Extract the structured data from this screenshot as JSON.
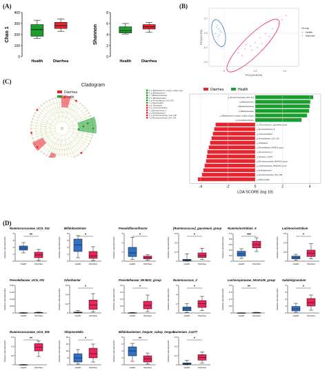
{
  "figure": {
    "panel_letters": [
      "(A)",
      "(B)",
      "(C)",
      "(D)"
    ],
    "colors": {
      "health": "#1a9e2e",
      "diarrhea": "#e8232e",
      "blue": "#2f72c8",
      "pink": "#e8245a"
    }
  },
  "panel_a": {
    "charts": [
      {
        "type": "box",
        "ylabel": "Chao 1",
        "ylim": [
          0,
          400
        ],
        "yticks": [
          "0",
          "100",
          "200",
          "300",
          "400"
        ],
        "categories": [
          "Health",
          "Diarrhea"
        ],
        "boxes": [
          {
            "name": "Health",
            "color": "#1a9e2e",
            "min": 165,
            "q1": 185,
            "median": 245,
            "q3": 290,
            "max": 330
          },
          {
            "name": "Diarrhea",
            "color": "#e8232e",
            "min": 230,
            "q1": 255,
            "median": 280,
            "q3": 310,
            "max": 340
          }
        ]
      },
      {
        "type": "box",
        "ylabel": "Shannon",
        "ylim": [
          0,
          8
        ],
        "yticks": [
          "0",
          "2",
          "4",
          "6",
          "8"
        ],
        "categories": [
          "Health",
          "Diarrhea"
        ],
        "boxes": [
          {
            "name": "Health",
            "color": "#1a9e2e",
            "min": 4.1,
            "q1": 4.3,
            "median": 4.7,
            "q3": 5.4,
            "max": 6.0
          },
          {
            "name": "Diarrhea",
            "color": "#e8232e",
            "min": 4.4,
            "q1": 5.0,
            "median": 5.4,
            "q3": 5.8,
            "max": 6.2
          }
        ]
      }
    ]
  },
  "panel_b": {
    "legend_title": "Group",
    "legend": [
      "Health",
      "Diarrhea"
    ],
    "xlabel": "PC1(19.61%)",
    "ylabel": "PC2(13.3%)",
    "xticks": [
      "0",
      "0.1",
      "0.2"
    ],
    "yticks": [
      "0.1",
      "0.0",
      "-0.1",
      "-0.2"
    ]
  },
  "panel_c": {
    "cladogram_title": "Cladogram",
    "legend": [
      "Diarrhea",
      "Health"
    ],
    "taxa_list": [
      "a: g_Bifidobacterium_longum_subsp_longum",
      "b: g_Bifidobacterium",
      "c: f_Bifidobacteriaceae",
      "d: o_Bifidobacteriales",
      "e: g_Prevotellaceae_UCG_001",
      "f: g_Alloprevotella",
      "g: g_Odoribacter",
      "h: g_Lachnoclostridium",
      "i: g_Ruminococcus_2",
      "j: g_Subdoligranulum",
      "k: g_Ruminococcaceae_UCG_005",
      "l: g_Ruminococcaceae_UCG_014"
    ],
    "lda": {
      "type": "bar",
      "xlabel": "LDA SCORE (log 10)",
      "xticks": [
        "-4",
        "-2",
        "0",
        "2",
        "4"
      ],
      "xlim": [
        -4.8,
        4.8
      ],
      "legend": [
        "Diarrhea",
        "Health"
      ],
      "items": [
        {
          "label": "g_Ruminococcaceae_UCG_014",
          "value": 4.25
        },
        {
          "label": "g_Bifidobacterium",
          "value": 4.05
        },
        {
          "label": "f_Bifidobacteriaceae",
          "value": 4.0
        },
        {
          "label": "o_Bifidobacteriales",
          "value": 3.95
        },
        {
          "label": "g_Bifidobacterium_longum_subsp_longum",
          "value": 3.8
        },
        {
          "label": "g_Pseudoflavonifractor",
          "value": 3.4
        },
        {
          "label": "g__Ruminococcus__gauvreauii_group",
          "value": -2.9
        },
        {
          "label": "g_Ruminiclostridium_9",
          "value": -3.0
        },
        {
          "label": "g_Lachnoclostridium",
          "value": -3.1
        },
        {
          "label": "g_Prevotellaceae_UCG_001",
          "value": -3.2
        },
        {
          "label": "g_Odoribacter",
          "value": -3.3
        },
        {
          "label": "g_Prevotellaceae_NK3B31_group",
          "value": -3.4
        },
        {
          "label": "g_Ruminococcus_2",
          "value": -3.5
        },
        {
          "label": "g_bacterium_ic1277",
          "value": -3.55
        },
        {
          "label": "g_Ruminococcaceae_NK4A214_group",
          "value": -3.6
        },
        {
          "label": "g_Lachnospiraceae_NK4A136_group",
          "value": -3.7
        },
        {
          "label": "g_Subdoligranulum",
          "value": -3.8
        },
        {
          "label": "g_Ruminococcaceae_UCG_005",
          "value": -3.9
        },
        {
          "label": "g_Alloprevotella",
          "value": -4.2
        }
      ]
    }
  },
  "panel_d": {
    "ylabel": "Relative abundance(%)",
    "categories": [
      "Health",
      "Diarrhea"
    ],
    "plots": [
      {
        "title": "Ruminococcaceae_UCG_014",
        "sig": "**",
        "yticks": [
          "0",
          "1",
          "2",
          "3",
          "4"
        ],
        "ymax": 4,
        "health": {
          "min": 1.2,
          "q1": 1.6,
          "median": 1.9,
          "q3": 2.2,
          "max": 2.7
        },
        "diarrhea": {
          "min": 0.1,
          "q1": 0.5,
          "median": 0.9,
          "q3": 1.3,
          "max": 1.7
        }
      },
      {
        "title": "Bifidobacterium",
        "sig": "*",
        "yticks": [
          "0",
          "2",
          "4",
          "6",
          "8"
        ],
        "ymax": 8,
        "health": {
          "min": 1.0,
          "q1": 2.8,
          "median": 4.7,
          "q3": 6.4,
          "max": 7.4
        },
        "diarrhea": {
          "min": 0.2,
          "q1": 0.8,
          "median": 1.5,
          "q3": 2.8,
          "max": 4.2
        }
      },
      {
        "title": "Pseudoflavonifractor",
        "sig": "*",
        "yticks": [
          "0",
          "1",
          "2",
          "3"
        ],
        "ymax": 3,
        "health": {
          "min": 0.2,
          "q1": 0.5,
          "median": 0.9,
          "q3": 1.5,
          "max": 2.6
        },
        "diarrhea": {
          "min": 0.1,
          "q1": 0.25,
          "median": 0.4,
          "q3": 0.55,
          "max": 0.7
        }
      },
      {
        "title": "[Ruminococcus]_gauvreauii_group",
        "sig": "*",
        "yticks": [
          "0",
          "0.1",
          "0.2",
          "0.3"
        ],
        "ymax": 0.3,
        "health": {
          "min": 0.0,
          "q1": 0.005,
          "median": 0.012,
          "q3": 0.02,
          "max": 0.08
        },
        "diarrhea": {
          "min": 0.02,
          "q1": 0.04,
          "median": 0.06,
          "q3": 0.09,
          "max": 0.14
        }
      },
      {
        "title": "Ruminiclostridium_9",
        "sig": "***",
        "yticks": [
          "0",
          "0.2",
          "0.4",
          "0.6",
          "0.8",
          "1.0"
        ],
        "ymax": 1.0,
        "health": {
          "min": 0.1,
          "q1": 0.18,
          "median": 0.27,
          "q3": 0.36,
          "max": 0.45
        },
        "diarrhea": {
          "min": 0.35,
          "q1": 0.48,
          "median": 0.6,
          "q3": 0.72,
          "max": 0.85
        }
      },
      {
        "title": "Lachnoclostridium",
        "sig": "*",
        "yticks": [
          "0",
          "0.2",
          "0.4",
          "0.6"
        ],
        "ymax": 0.6,
        "health": {
          "min": 0.02,
          "q1": 0.05,
          "median": 0.08,
          "q3": 0.11,
          "max": 0.15
        },
        "diarrhea": {
          "min": 0.05,
          "q1": 0.1,
          "median": 0.17,
          "q3": 0.24,
          "max": 0.38
        }
      },
      {
        "title": "Prevotellaceae_UCG_001",
        "sig": "",
        "yticks": [
          "0",
          "0.05",
          "0.10",
          "0.15",
          "0.20"
        ],
        "ymax": 0.2,
        "health": {
          "min": 0.0,
          "q1": 0.0,
          "median": 0.0,
          "q3": 0.002,
          "max": 0.004
        },
        "diarrhea": {
          "min": 0.0,
          "q1": 0.0,
          "median": 0.002,
          "q3": 0.004,
          "max": 0.006
        }
      },
      {
        "title": "Odoribacter",
        "sig": "*",
        "yticks": [
          "0",
          "0.2",
          "0.4",
          "0.6"
        ],
        "ymax": 0.6,
        "health": {
          "min": 0.0,
          "q1": 0.005,
          "median": 0.01,
          "q3": 0.02,
          "max": 0.05
        },
        "diarrhea": {
          "min": 0.02,
          "q1": 0.08,
          "median": 0.17,
          "q3": 0.28,
          "max": 0.42
        }
      },
      {
        "title": "Prevotellaceae_NK3B31_group",
        "sig": "*",
        "yticks": [
          "0",
          "0.5",
          "1.0",
          "1.5",
          "2.0"
        ],
        "ymax": 2.0,
        "health": {
          "min": 0.0,
          "q1": 0.0,
          "median": 0.01,
          "q3": 0.02,
          "max": 0.04
        },
        "diarrhea": {
          "min": 0.1,
          "q1": 0.3,
          "median": 0.55,
          "q3": 0.85,
          "max": 1.3
        }
      },
      {
        "title": "Ruminococcus_2",
        "sig": "*",
        "yticks": [
          "0",
          "2",
          "4",
          "6"
        ],
        "ymax": 6,
        "health": {
          "min": 0.1,
          "q1": 0.5,
          "median": 0.9,
          "q3": 1.3,
          "max": 2.0
        },
        "diarrhea": {
          "min": 0.5,
          "q1": 1.2,
          "median": 2.0,
          "q3": 2.7,
          "max": 3.6
        }
      },
      {
        "title": "Lachnospiraceae_NK4A136_group",
        "sig": "**",
        "yticks": [
          "0",
          "0.5",
          "1.0",
          "1.5",
          "2.0"
        ],
        "ymax": 2.0,
        "health": {
          "min": 0.0,
          "q1": 0.0,
          "median": 0.005,
          "q3": 0.01,
          "max": 0.02
        },
        "diarrhea": {
          "min": 0.0,
          "q1": 0.01,
          "median": 0.02,
          "q3": 0.03,
          "max": 0.05
        }
      },
      {
        "title": "Subdoligranulum",
        "sig": "*",
        "yticks": [
          "0",
          "1",
          "2",
          "3",
          "4"
        ],
        "ymax": 4,
        "health": {
          "min": 0.1,
          "q1": 0.3,
          "median": 0.6,
          "q3": 0.95,
          "max": 1.4
        },
        "diarrhea": {
          "min": 0.4,
          "q1": 1.0,
          "median": 1.5,
          "q3": 2.1,
          "max": 2.6
        }
      },
      {
        "title": "Ruminococcaceae_UCG_005",
        "sig": "**",
        "yticks": [
          "0",
          "0.5",
          "1.0",
          "1.5"
        ],
        "ymax": 1.5,
        "health": {
          "min": 0.0,
          "q1": 0.0,
          "median": 0.0,
          "q3": 0.01,
          "max": 0.02
        },
        "diarrhea": {
          "min": 0.45,
          "q1": 0.75,
          "median": 0.95,
          "q3": 1.15,
          "max": 1.3
        }
      },
      {
        "title": "Alloprevotella",
        "sig": "*",
        "yticks": [
          "0",
          "5",
          "10",
          "15",
          "20"
        ],
        "ymax": 20,
        "health": {
          "min": 0.5,
          "q1": 2.0,
          "median": 5.0,
          "q3": 8.0,
          "max": 11.0
        },
        "diarrhea": {
          "min": 2.0,
          "q1": 5.0,
          "median": 8.0,
          "q3": 12.0,
          "max": 15.0
        }
      },
      {
        "title": "Bifidobacterium_longum_subsp_longum",
        "sig": "**",
        "yticks": [
          "0",
          "2",
          "4",
          "6",
          "8"
        ],
        "ymax": 8,
        "health": {
          "min": 1.0,
          "q1": 2.6,
          "median": 4.0,
          "q3": 5.2,
          "max": 6.2
        },
        "diarrhea": {
          "min": 0.2,
          "q1": 0.8,
          "median": 1.7,
          "q3": 2.6,
          "max": 3.4
        }
      },
      {
        "title": "bacterium_ic1277",
        "sig": "*",
        "yticks": [
          "0",
          "0.1",
          "0.2",
          "0.3"
        ],
        "ymax": 0.3,
        "health": {
          "min": 0.0,
          "q1": 0.005,
          "median": 0.01,
          "q3": 0.02,
          "max": 0.05
        },
        "diarrhea": {
          "min": 0.02,
          "q1": 0.05,
          "median": 0.08,
          "q3": 0.11,
          "max": 0.14
        }
      }
    ]
  }
}
